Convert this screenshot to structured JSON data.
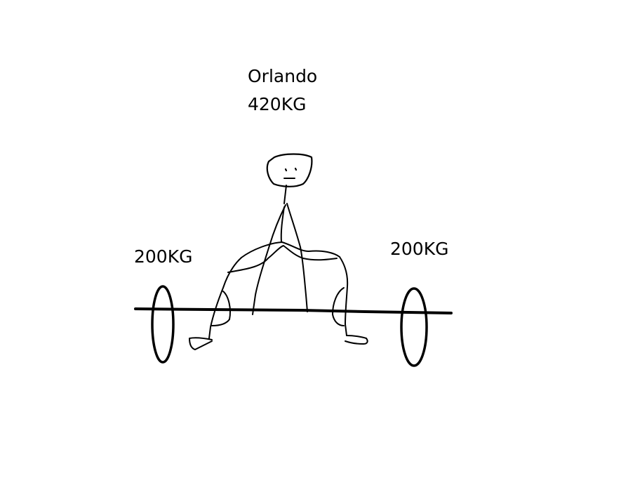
{
  "lifter": {
    "name": "Orlando",
    "total_weight": "420KG"
  },
  "plates": {
    "left_weight": "200KG",
    "right_weight": "200KG"
  },
  "colors": {
    "background": "#ffffff",
    "ink": "#000000"
  }
}
